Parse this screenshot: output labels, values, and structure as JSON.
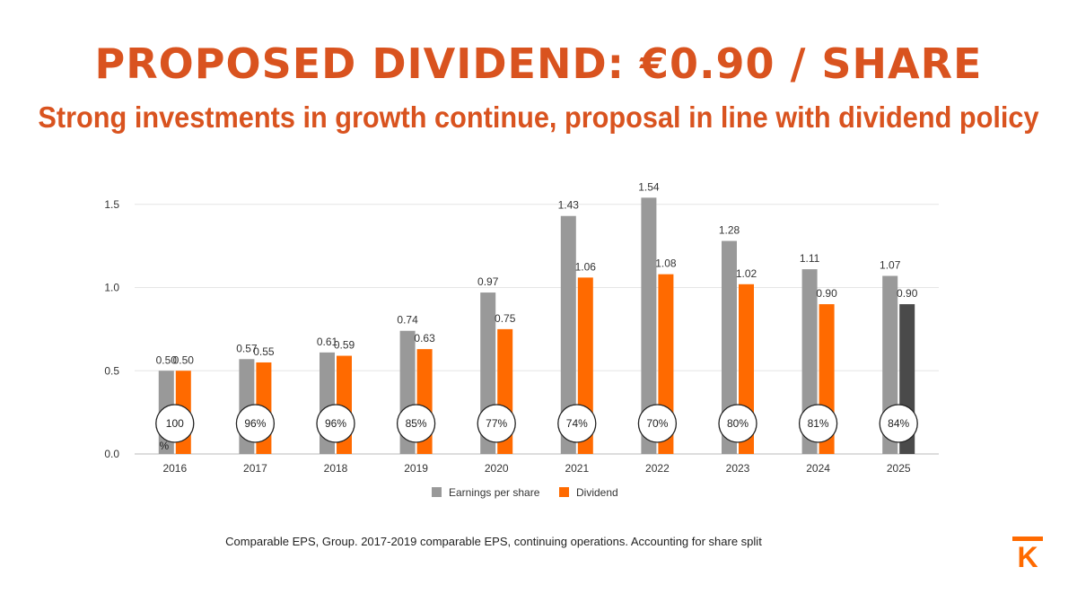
{
  "header": {
    "title": "PROPOSED DIVIDEND: €0.90 / SHARE",
    "subtitle": "Strong investments in growth continue, proposal in line with dividend policy"
  },
  "footnote": "Comparable EPS, Group. 2017-2019 comparable EPS, continuing operations. Accounting for share split",
  "logo": {
    "letter": "K",
    "color": "#ff6a00"
  },
  "colors": {
    "eps": "#999999",
    "dividend": "#ff6a00",
    "dividend_proposed": "#4a4a4a",
    "grid": "#e6e6e6",
    "axis": "#bbbbbb"
  },
  "chart_data": {
    "type": "bar",
    "categories": [
      "2016",
      "2017",
      "2018",
      "2019",
      "2020",
      "2021",
      "2022",
      "2023",
      "2024",
      "2025"
    ],
    "series": [
      {
        "name": "Earnings per share",
        "values": [
          0.5,
          0.57,
          0.61,
          0.74,
          0.97,
          1.43,
          1.54,
          1.28,
          1.11,
          1.07
        ],
        "labels": [
          "0.50",
          "0.57",
          "0.61",
          "0.74",
          "0.97",
          "1.43",
          "1.54",
          "1.28",
          "1.11",
          "1.07"
        ]
      },
      {
        "name": "Dividend",
        "values": [
          0.5,
          0.55,
          0.59,
          0.63,
          0.75,
          1.06,
          1.08,
          1.02,
          0.9,
          0.9
        ],
        "labels": [
          "0.50",
          "0.55",
          "0.59",
          "0.63",
          "0.75",
          "1.06",
          "1.08",
          "1.02",
          "0.90",
          "0.90"
        ]
      }
    ],
    "payout_ratios": [
      "100 %",
      "96%",
      "96%",
      "85%",
      "77%",
      "74%",
      "70%",
      "80%",
      "81%",
      "84%"
    ],
    "y_ticks": [
      "0.0",
      "0.5",
      "1.0",
      "1.5"
    ],
    "y_tick_values": [
      0,
      0.5,
      1.0,
      1.5
    ],
    "ylim": [
      0,
      1.6
    ],
    "legend_position": "bottom-center",
    "grid": true,
    "highlight_last_dividend": true
  }
}
